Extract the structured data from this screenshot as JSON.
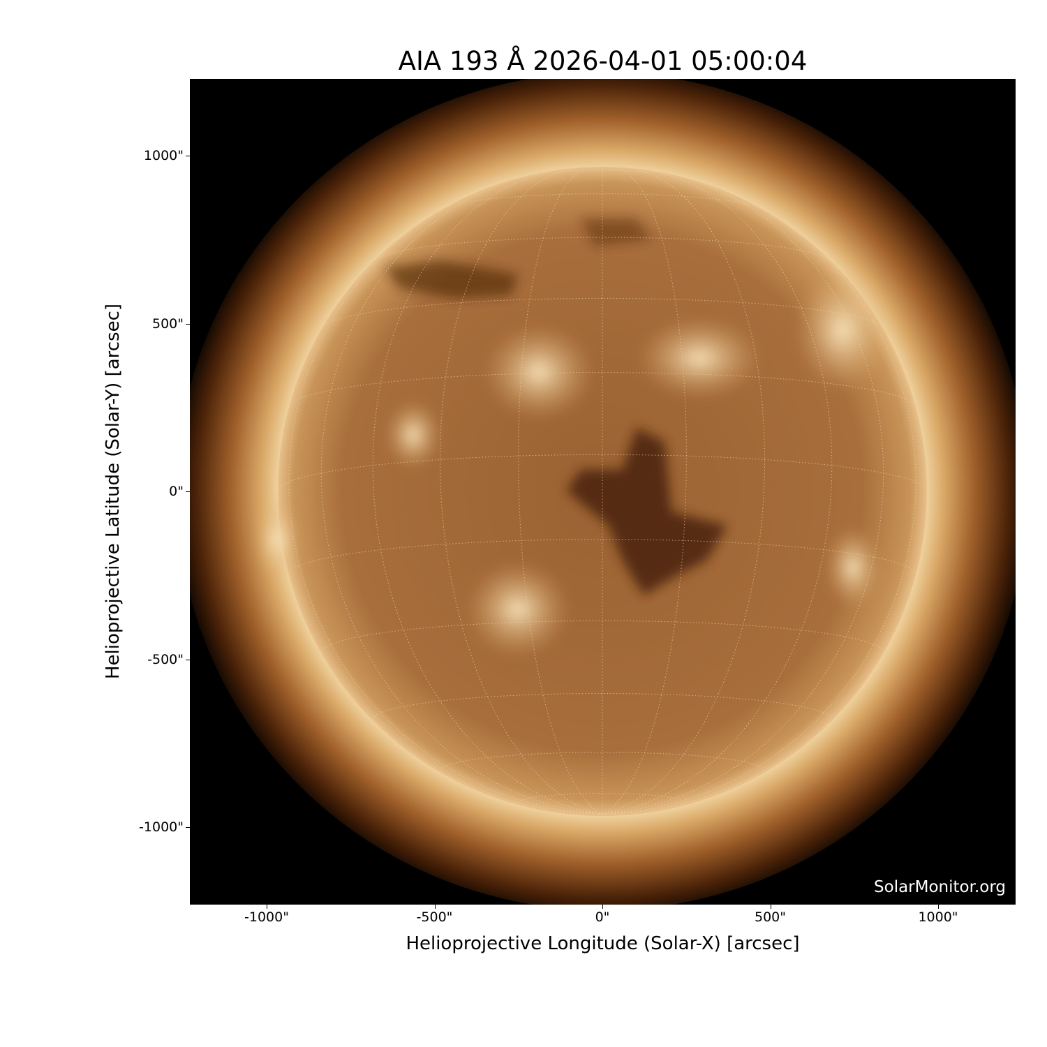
{
  "title": "AIA 193 Å 2026-04-01 05:00:04",
  "xlabel": "Helioprojective Longitude (Solar-X) [arcsec]",
  "ylabel": "Helioprojective Latitude (Solar-Y) [arcsec]",
  "watermark": "SolarMonitor.org",
  "x_ticks": [
    {
      "value": -1000,
      "label": "-1000\""
    },
    {
      "value": -500,
      "label": "-500\""
    },
    {
      "value": 0,
      "label": "0\""
    },
    {
      "value": 500,
      "label": "500\""
    },
    {
      "value": 1000,
      "label": "1000\""
    }
  ],
  "y_ticks": [
    {
      "value": 1000,
      "label": "1000\""
    },
    {
      "value": 500,
      "label": "500\""
    },
    {
      "value": 0,
      "label": "0\""
    },
    {
      "value": -500,
      "label": "-500\""
    },
    {
      "value": -1000,
      "label": "-1000\""
    }
  ],
  "axis_range_arcsec": {
    "x": [
      -1229,
      1231
    ],
    "y": [
      -1229,
      1231
    ]
  },
  "image": {
    "instrument": "AIA",
    "wavelength": "193 Å",
    "colormap": "sdoaia193",
    "grid": "heliographic, dotted, 15° spacing"
  },
  "colors": {
    "background": "#000000",
    "disk": "#a0683a",
    "limb": "#f2d3a0",
    "coronal_hole": "#4a2208",
    "grid": "#e8c89a"
  }
}
